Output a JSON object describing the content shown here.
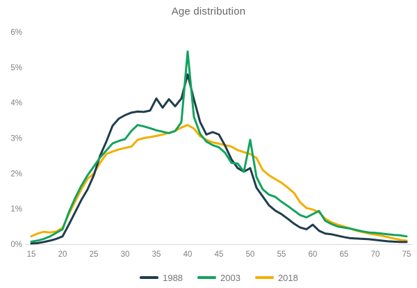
{
  "title": "Age distribution",
  "axes": {
    "y_tick_labels": [
      "0%",
      "1%",
      "2%",
      "3%",
      "4%",
      "5%",
      "6%"
    ],
    "x_tick_labels": [
      "15",
      "20",
      "25",
      "30",
      "35",
      "40",
      "45",
      "50",
      "55",
      "60",
      "65",
      "70",
      "75"
    ]
  },
  "legend": {
    "items": [
      {
        "label": "1988",
        "color": "#1f3d4d"
      },
      {
        "label": "2003",
        "color": "#12a35d"
      },
      {
        "label": "2018",
        "color": "#f3ae00"
      }
    ]
  },
  "chart_data": {
    "type": "line",
    "title": "Age distribution",
    "xlabel": "",
    "ylabel": "",
    "xlim": [
      15,
      75
    ],
    "ylim": [
      0,
      6
    ],
    "x_step": 1,
    "x_ticks": [
      15,
      20,
      25,
      30,
      35,
      40,
      45,
      50,
      55,
      60,
      65,
      70,
      75
    ],
    "y_ticks": [
      0,
      1,
      2,
      3,
      4,
      5,
      6
    ],
    "grid": false,
    "legend_position": "bottom",
    "y_unit": "%",
    "draw_order": [
      "2018",
      "1988",
      "2003"
    ],
    "series": [
      {
        "name": "1988",
        "color": "#1f3d4d",
        "values": [
          0.02,
          0.03,
          0.06,
          0.1,
          0.15,
          0.22,
          0.55,
          0.9,
          1.25,
          1.55,
          1.95,
          2.5,
          2.9,
          3.35,
          3.55,
          3.65,
          3.72,
          3.75,
          3.74,
          3.78,
          4.12,
          3.86,
          4.1,
          3.9,
          4.12,
          4.8,
          4.1,
          3.45,
          3.1,
          3.17,
          3.1,
          2.78,
          2.4,
          2.15,
          2.05,
          2.15,
          1.6,
          1.35,
          1.1,
          0.95,
          0.85,
          0.72,
          0.58,
          0.47,
          0.42,
          0.55,
          0.38,
          0.3,
          0.28,
          0.24,
          0.2,
          0.17,
          0.16,
          0.15,
          0.14,
          0.12,
          0.1,
          0.08,
          0.07,
          0.06,
          0.06
        ]
      },
      {
        "name": "2003",
        "color": "#12a35d",
        "values": [
          0.07,
          0.1,
          0.15,
          0.22,
          0.32,
          0.42,
          0.9,
          1.3,
          1.65,
          1.95,
          2.2,
          2.45,
          2.65,
          2.85,
          2.92,
          2.97,
          3.2,
          3.37,
          3.33,
          3.28,
          3.22,
          3.18,
          3.14,
          3.2,
          3.45,
          5.45,
          3.6,
          3.12,
          2.9,
          2.8,
          2.74,
          2.58,
          2.3,
          2.28,
          2.05,
          2.95,
          1.9,
          1.55,
          1.4,
          1.34,
          1.2,
          1.08,
          0.95,
          0.82,
          0.76,
          0.85,
          0.94,
          0.66,
          0.57,
          0.5,
          0.47,
          0.44,
          0.4,
          0.36,
          0.33,
          0.32,
          0.3,
          0.28,
          0.26,
          0.25,
          0.22
        ]
      },
      {
        "name": "2018",
        "color": "#f3ae00",
        "values": [
          0.22,
          0.3,
          0.35,
          0.33,
          0.36,
          0.46,
          0.85,
          1.2,
          1.55,
          1.85,
          2.0,
          2.3,
          2.55,
          2.62,
          2.68,
          2.72,
          2.76,
          2.95,
          3.0,
          3.03,
          3.06,
          3.1,
          3.15,
          3.2,
          3.3,
          3.37,
          3.27,
          3.05,
          2.95,
          2.88,
          2.84,
          2.8,
          2.76,
          2.66,
          2.6,
          2.55,
          2.44,
          2.1,
          1.95,
          1.84,
          1.74,
          1.6,
          1.45,
          1.18,
          1.02,
          0.98,
          0.9,
          0.72,
          0.62,
          0.55,
          0.5,
          0.44,
          0.38,
          0.34,
          0.3,
          0.27,
          0.24,
          0.2,
          0.16,
          0.12,
          0.1
        ]
      }
    ]
  }
}
